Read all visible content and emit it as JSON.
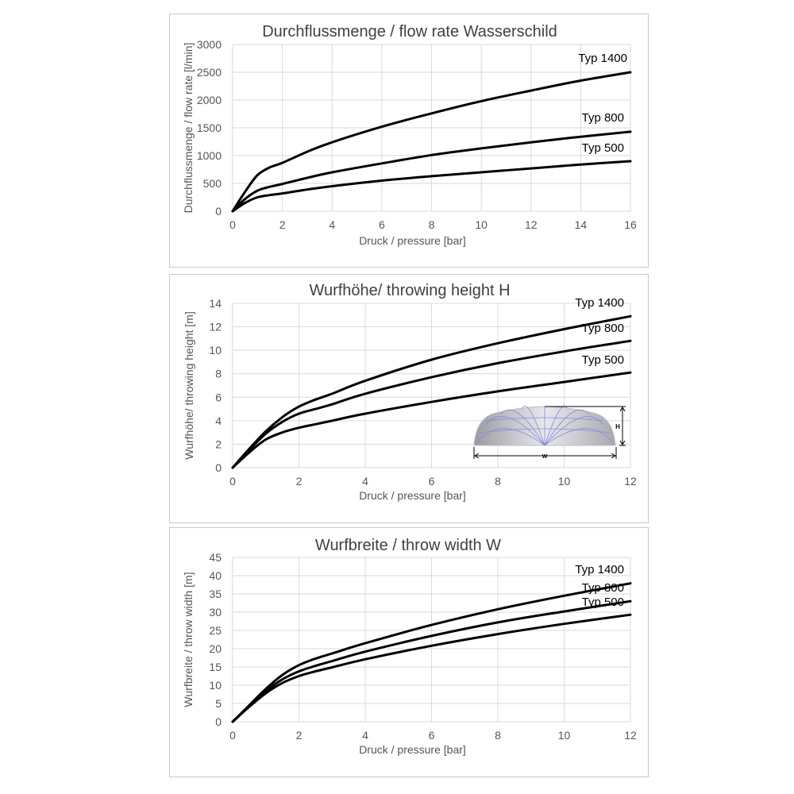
{
  "chart_data": [
    {
      "type": "line",
      "title": "Durchflussmenge / flow rate Wasserschild",
      "xlabel": "Druck / pressure [bar]",
      "ylabel": "Durchflussmenge / flow rate [l/min]",
      "xlim": [
        0,
        16
      ],
      "ylim": [
        0,
        3000
      ],
      "xticks": [
        0,
        2,
        4,
        6,
        8,
        10,
        12,
        14,
        16
      ],
      "yticks": [
        0,
        500,
        1000,
        1500,
        2000,
        2500,
        3000
      ],
      "grid": true,
      "series": [
        {
          "name": "Typ 1400",
          "x": [
            0,
            0.5,
            1,
            1.5,
            2,
            3,
            4,
            6,
            8,
            10,
            12,
            14,
            16
          ],
          "y": [
            0,
            350,
            650,
            790,
            870,
            1070,
            1240,
            1520,
            1760,
            1980,
            2170,
            2350,
            2500
          ]
        },
        {
          "name": "Typ 800",
          "x": [
            0,
            0.5,
            1,
            1.5,
            2,
            3,
            4,
            6,
            8,
            10,
            12,
            14,
            16
          ],
          "y": [
            0,
            220,
            370,
            440,
            490,
            600,
            700,
            860,
            1010,
            1130,
            1240,
            1340,
            1430
          ]
        },
        {
          "name": "Typ 500",
          "x": [
            0,
            0.5,
            1,
            1.5,
            2,
            3,
            4,
            6,
            8,
            10,
            12,
            14,
            16
          ],
          "y": [
            0,
            150,
            250,
            290,
            320,
            390,
            450,
            550,
            630,
            700,
            770,
            840,
            900
          ]
        }
      ]
    },
    {
      "type": "line",
      "title": "Wurfhöhe/ throwing height H",
      "xlabel": "Druck / pressure [bar]",
      "ylabel": "Wurfhöhe/ throwing height [m]",
      "xlim": [
        0,
        12
      ],
      "ylim": [
        0,
        14
      ],
      "xticks": [
        0,
        2,
        4,
        6,
        8,
        10,
        12
      ],
      "yticks": [
        0,
        2,
        4,
        6,
        8,
        10,
        12,
        14
      ],
      "grid": true,
      "series": [
        {
          "name": "Typ 1400",
          "x": [
            0,
            0.5,
            1,
            1.5,
            2,
            2.5,
            3,
            4,
            6,
            8,
            10,
            12
          ],
          "y": [
            0,
            1.6,
            3.1,
            4.3,
            5.2,
            5.8,
            6.3,
            7.4,
            9.2,
            10.6,
            11.8,
            12.9
          ]
        },
        {
          "name": "Typ 800",
          "x": [
            0,
            0.5,
            1,
            1.5,
            2,
            2.5,
            3,
            4,
            6,
            8,
            10,
            12
          ],
          "y": [
            0,
            1.5,
            2.9,
            3.9,
            4.6,
            5.0,
            5.4,
            6.3,
            7.7,
            8.9,
            9.9,
            10.8
          ]
        },
        {
          "name": "Typ 500",
          "x": [
            0,
            0.5,
            1,
            1.5,
            2,
            2.5,
            3,
            4,
            6,
            8,
            10,
            12
          ],
          "y": [
            0,
            1.3,
            2.4,
            3.0,
            3.4,
            3.7,
            4.0,
            4.6,
            5.6,
            6.5,
            7.3,
            8.1
          ]
        }
      ]
    },
    {
      "type": "line",
      "title": "Wurfbreite / throw width W",
      "xlabel": "Druck / pressure [bar]",
      "ylabel": "Wurfbreite / throw width [m]",
      "xlim": [
        0,
        12
      ],
      "ylim": [
        0,
        45
      ],
      "xticks": [
        0,
        2,
        4,
        6,
        8,
        10,
        12
      ],
      "yticks": [
        0,
        5,
        10,
        15,
        20,
        25,
        30,
        35,
        40,
        45
      ],
      "grid": true,
      "series": [
        {
          "name": "Typ 1400",
          "x": [
            0,
            0.5,
            1,
            1.5,
            2,
            2.5,
            3,
            4,
            6,
            8,
            10,
            12
          ],
          "y": [
            0,
            4.5,
            9.0,
            12.8,
            15.5,
            17.3,
            18.7,
            21.5,
            26.5,
            30.8,
            34.5,
            37.9
          ]
        },
        {
          "name": "Typ 800",
          "x": [
            0,
            0.5,
            1,
            1.5,
            2,
            2.5,
            3,
            4,
            6,
            8,
            10,
            12
          ],
          "y": [
            0,
            4.3,
            8.4,
            11.6,
            13.8,
            15.3,
            16.6,
            19.2,
            23.5,
            27.2,
            30.2,
            33.0
          ]
        },
        {
          "name": "Typ 500",
          "x": [
            0,
            0.5,
            1,
            1.5,
            2,
            2.5,
            3,
            4,
            6,
            8,
            10,
            12
          ],
          "y": [
            0,
            4.1,
            7.8,
            10.6,
            12.5,
            13.8,
            14.9,
            17.1,
            20.8,
            24.0,
            26.8,
            29.3
          ]
        }
      ]
    }
  ],
  "inset": {
    "height_label": "H",
    "width_label": "W"
  }
}
